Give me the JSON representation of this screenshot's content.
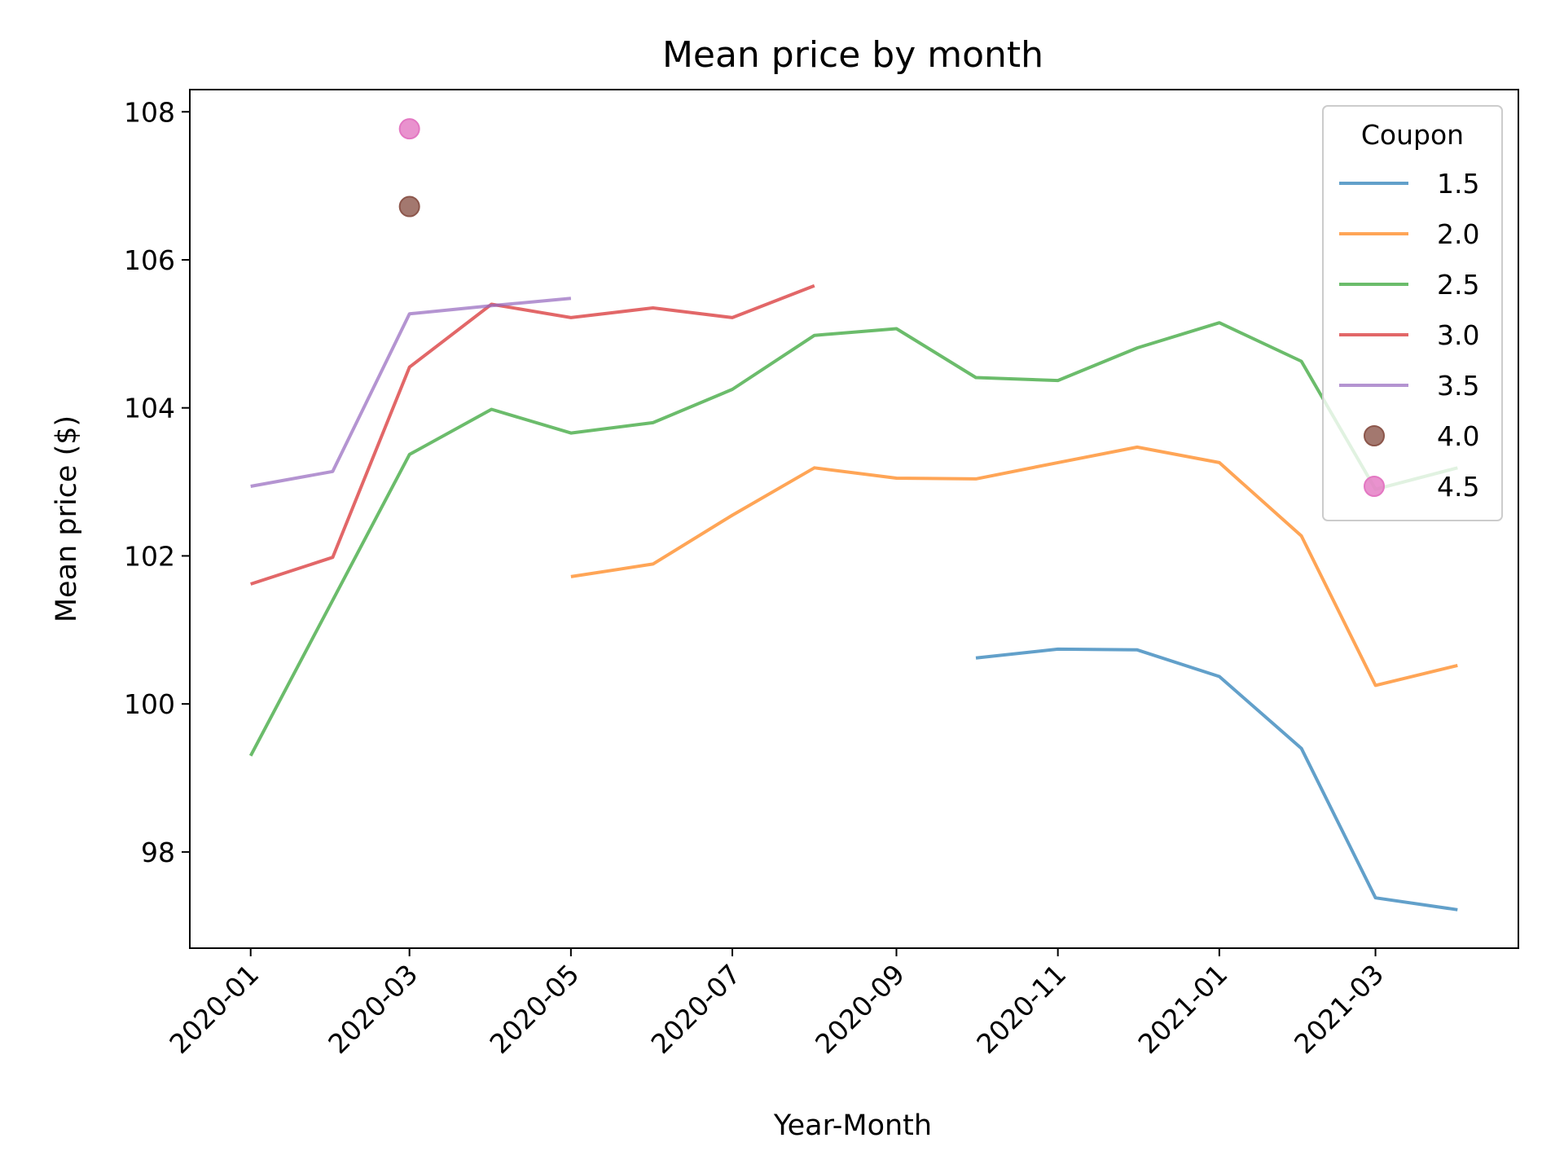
{
  "chart_data": {
    "type": "line",
    "title": "Mean price by month",
    "xlabel": "Year-Month",
    "ylabel": "Mean price ($)",
    "x_months": [
      "2020-01",
      "2020-02",
      "2020-03",
      "2020-04",
      "2020-05",
      "2020-06",
      "2020-07",
      "2020-08",
      "2020-09",
      "2020-10",
      "2020-11",
      "2020-12",
      "2021-01",
      "2021-02",
      "2021-03",
      "2021-04"
    ],
    "xlim": [
      "2019-12-09",
      "2021-04-24"
    ],
    "ylim": [
      96.7,
      108.3
    ],
    "x_ticks": [
      "2020-01",
      "2020-03",
      "2020-05",
      "2020-07",
      "2020-09",
      "2020-11",
      "2021-01",
      "2021-03"
    ],
    "y_ticks": [
      98,
      100,
      102,
      104,
      106,
      108
    ],
    "legend": {
      "title": "Coupon",
      "placement": "upper right"
    },
    "series": [
      {
        "name": "1.5",
        "color": "#1f77b4",
        "style": "line",
        "values": [
          null,
          null,
          null,
          null,
          null,
          null,
          null,
          null,
          null,
          100.62,
          100.74,
          100.73,
          100.37,
          99.4,
          97.38,
          97.22
        ]
      },
      {
        "name": "2.0",
        "color": "#ff7f0e",
        "style": "line",
        "values": [
          null,
          null,
          null,
          null,
          101.72,
          101.89,
          102.55,
          103.19,
          103.05,
          103.04,
          103.26,
          103.47,
          103.26,
          102.27,
          100.25,
          100.52
        ]
      },
      {
        "name": "2.5",
        "color": "#2ca02c",
        "style": "line",
        "values": [
          99.3,
          101.4,
          103.37,
          103.98,
          103.66,
          103.8,
          104.25,
          104.98,
          105.07,
          104.41,
          104.37,
          104.81,
          105.15,
          104.63,
          102.9,
          103.19
        ]
      },
      {
        "name": "3.0",
        "color": "#d62728",
        "style": "line",
        "values": [
          101.62,
          101.98,
          104.55,
          105.4,
          105.22,
          105.35,
          105.22,
          105.65,
          null,
          null,
          null,
          null,
          null,
          null,
          null,
          null
        ]
      },
      {
        "name": "3.5",
        "color": "#9467bd",
        "style": "line",
        "values": [
          102.94,
          103.14,
          105.27,
          105.38,
          105.48,
          null,
          null,
          null,
          null,
          null,
          null,
          null,
          null,
          null,
          null,
          null
        ]
      },
      {
        "name": "4.0",
        "color": "#8c564b",
        "style": "point",
        "values": [
          null,
          null,
          106.72,
          null,
          null,
          null,
          null,
          null,
          null,
          null,
          null,
          null,
          null,
          null,
          null,
          null
        ]
      },
      {
        "name": "4.5",
        "color": "#e377c2",
        "style": "point",
        "values": [
          null,
          null,
          107.77,
          null,
          null,
          null,
          null,
          null,
          null,
          null,
          null,
          null,
          null,
          null,
          null,
          null
        ]
      }
    ]
  }
}
